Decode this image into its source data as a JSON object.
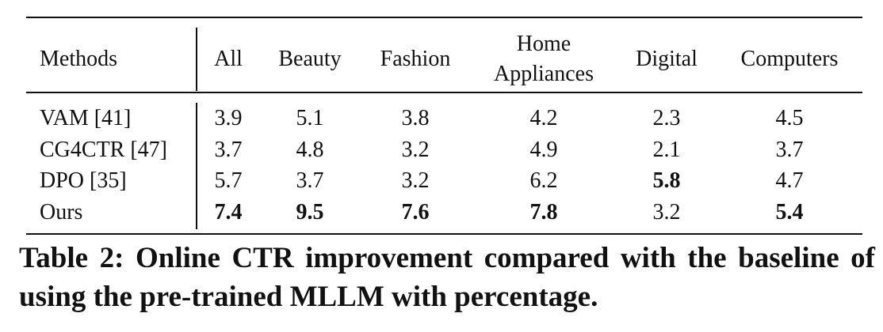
{
  "table": {
    "columns": [
      "Methods",
      "All",
      "Beauty",
      "Fashion",
      "Home Appliances",
      "Digital",
      "Computers"
    ],
    "rows": [
      [
        "VAM [41]",
        3.9,
        5.1,
        3.8,
        4.2,
        2.3,
        4.5
      ],
      [
        "CG4CTR [47]",
        3.7,
        4.8,
        3.2,
        4.9,
        2.1,
        3.7
      ],
      [
        "DPO [35]",
        5.7,
        3.7,
        3.2,
        6.2,
        5.8,
        4.7
      ],
      [
        "Ours",
        7.4,
        9.5,
        7.6,
        7.8,
        3.2,
        5.4
      ]
    ],
    "caption": "Table 2: Online CTR improvement compared with the baseline of using the pre-trained MLLM with percentage."
  }
}
